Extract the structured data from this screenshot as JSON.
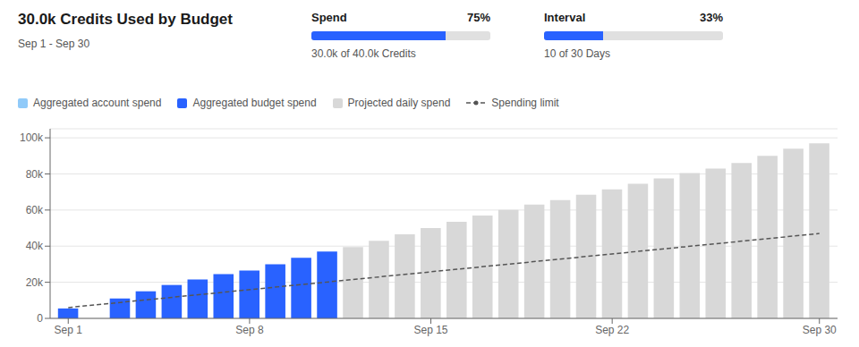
{
  "chart_data": {
    "type": "bar",
    "title": "30.0k Credits Used by Budget",
    "subtitle": "Sep 1 - Sep 30",
    "progress": [
      {
        "name": "Spend",
        "value": 75,
        "value_label": "75%",
        "range": [
          0,
          100
        ],
        "text": "30.0k of 40.0k Credits",
        "color": "#2962FF"
      },
      {
        "name": "Interval",
        "value": 33,
        "value_label": "33%",
        "range": [
          0,
          100
        ],
        "text": "10 of 30 Days",
        "color": "#2962FF"
      }
    ],
    "x": [
      1,
      2,
      3,
      4,
      5,
      6,
      7,
      8,
      9,
      10,
      11,
      12,
      13,
      14,
      15,
      16,
      17,
      18,
      19,
      20,
      21,
      22,
      23,
      24,
      25,
      26,
      27,
      28,
      29,
      30
    ],
    "series": [
      {
        "name": "Aggregated account spend",
        "type": "bar",
        "color": "#90CAF9",
        "values": [
          null,
          null,
          null,
          null,
          null,
          null,
          null,
          null,
          null,
          null,
          null,
          null,
          null,
          null,
          null,
          null,
          null,
          null,
          null,
          null,
          null,
          null,
          null,
          null,
          null,
          null,
          null,
          null,
          null,
          null
        ]
      },
      {
        "name": "Aggregated budget spend",
        "type": "bar",
        "color": "#2962FF",
        "values": [
          5500,
          0,
          11000,
          15000,
          18500,
          21500,
          24500,
          26500,
          30000,
          33500,
          37000,
          0,
          0,
          0,
          0,
          0,
          0,
          0,
          0,
          0,
          0,
          0,
          0,
          0,
          0,
          0,
          0,
          0,
          0,
          0
        ]
      },
      {
        "name": "Projected daily spend",
        "type": "bar",
        "color": "#D8D8D8",
        "values": [
          0,
          0,
          0,
          0,
          0,
          0,
          0,
          0,
          0,
          0,
          0,
          39500,
          43000,
          46500,
          50000,
          53500,
          57000,
          60000,
          63000,
          65500,
          68500,
          71500,
          74500,
          77500,
          80500,
          83000,
          86000,
          90000,
          94000,
          97000
        ]
      },
      {
        "name": "Spending limit",
        "type": "line",
        "color": "#555555",
        "line_style": "dashed",
        "x": [
          1,
          30
        ],
        "values": [
          6000,
          47000
        ]
      }
    ],
    "xlim": [
      0.3,
      30.7
    ],
    "xticks": [
      {
        "value": 1,
        "label": "Sep 1"
      },
      {
        "value": 8,
        "label": "Sep 8"
      },
      {
        "value": 15,
        "label": "Sep 15"
      },
      {
        "value": 22,
        "label": "Sep 22"
      },
      {
        "value": 30,
        "label": "Sep 30"
      }
    ],
    "ylim": [
      0,
      105000
    ],
    "yticks": [
      0,
      {
        "value": 20000,
        "label": "20k"
      },
      {
        "value": 40000,
        "label": "40k"
      },
      {
        "value": 60000,
        "label": "60k"
      },
      {
        "value": 80000,
        "label": "80k"
      },
      {
        "value": 100000,
        "label": "100k"
      }
    ],
    "grid": true,
    "legend": "top"
  }
}
